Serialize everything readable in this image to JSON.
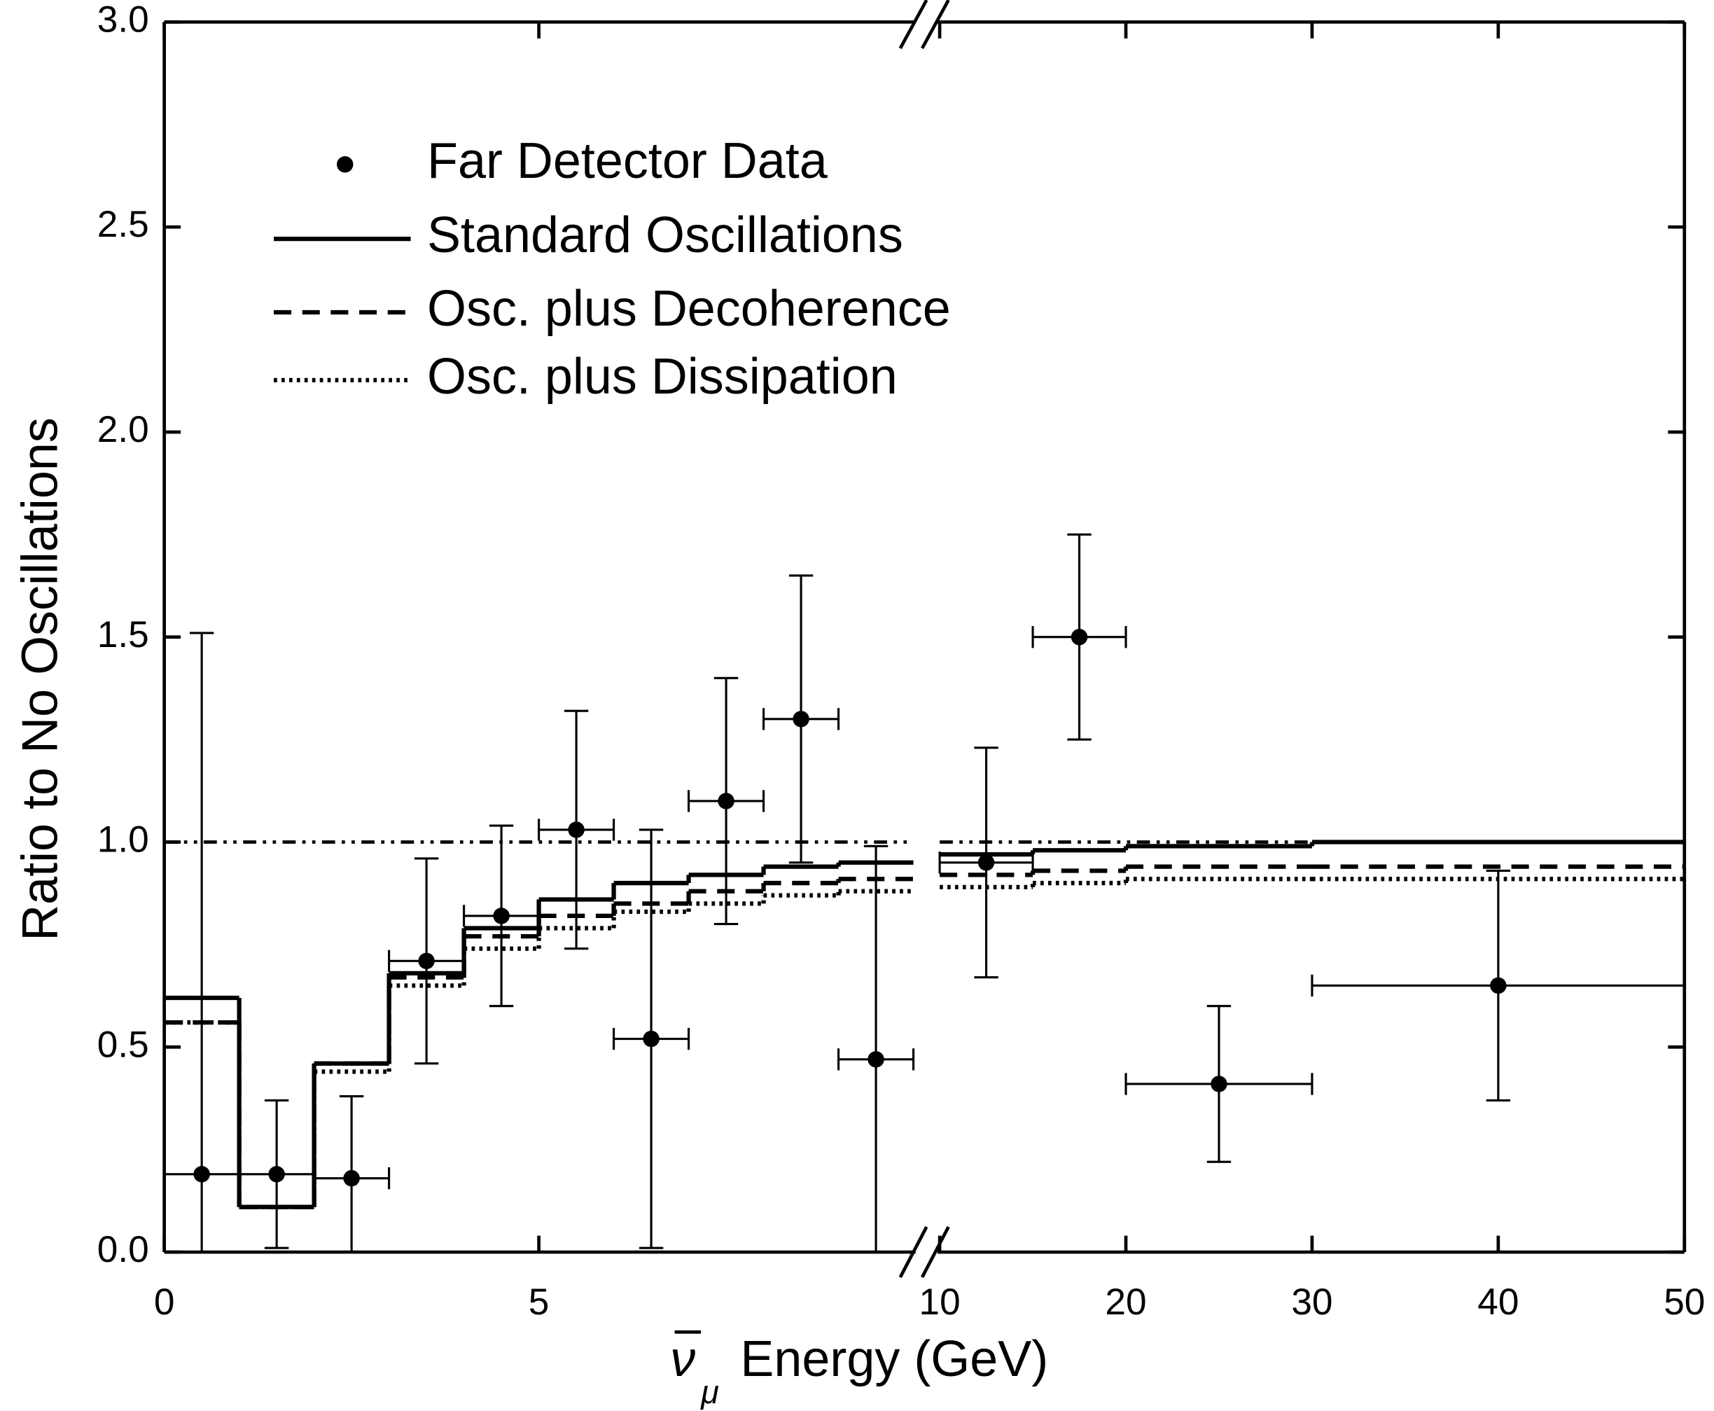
{
  "chart_data": {
    "type": "step",
    "ylabel": "Ratio to No Oscillations",
    "xlabel_symbol": "ν",
    "xlabel_subscript": "μ",
    "xlabel": "Energy (GeV)",
    "x_segments": [
      [
        0,
        10
      ],
      [
        10,
        50
      ]
    ],
    "xticks": [
      0,
      5,
      10,
      20,
      30,
      40,
      50
    ],
    "ylim": [
      0,
      3
    ],
    "yticks": [
      {
        "value": 0,
        "label": "0.0"
      },
      0.5,
      {
        "value": 1,
        "label": "1.0"
      },
      1.5,
      {
        "value": 2,
        "label": "2.0"
      },
      2.5,
      {
        "value": 3,
        "label": "3.0"
      }
    ],
    "reference_line": 1,
    "legend": "upper left",
    "bins": [
      0,
      1,
      2,
      3,
      4,
      5,
      6,
      7,
      8,
      9,
      10,
      15,
      20,
      30,
      50
    ],
    "steps": [
      {
        "name": "Standard Oscillations",
        "color": "#000000",
        "dash": "solid",
        "values": [
          0.62,
          0.11,
          0.46,
          0.68,
          0.79,
          0.86,
          0.9,
          0.92,
          0.94,
          0.95,
          0.97,
          0.98,
          0.99,
          1.0
        ]
      },
      {
        "name": "Osc. plus Decoherence",
        "color": "#000000",
        "dash": "dashed",
        "values": [
          0.56,
          0.11,
          0.46,
          0.67,
          0.77,
          0.82,
          0.85,
          0.88,
          0.9,
          0.91,
          0.92,
          0.93,
          0.94,
          0.94
        ]
      },
      {
        "name": "Osc. plus Dissipation",
        "color": "#000000",
        "dash": "dotted",
        "values": [
          0.56,
          0.11,
          0.44,
          0.65,
          0.74,
          0.79,
          0.83,
          0.85,
          0.87,
          0.88,
          0.89,
          0.9,
          0.91,
          0.91
        ]
      }
    ],
    "points": {
      "name": "Far Detector Data",
      "color": "#000000",
      "x": [
        0.5,
        1.5,
        2.5,
        3.5,
        4.5,
        5.5,
        6.5,
        7.5,
        8.5,
        9.5,
        12.5,
        17.5,
        25,
        40
      ],
      "values": [
        0.19,
        0.19,
        0.18,
        0.71,
        0.82,
        1.03,
        0.52,
        1.1,
        1.3,
        0.47,
        0.95,
        1.5,
        0.41,
        0.65
      ],
      "xerr": [
        0.5,
        0.5,
        0.5,
        0.5,
        0.5,
        0.5,
        0.5,
        0.5,
        0.5,
        0.5,
        2.5,
        2.5,
        5,
        10
      ],
      "yerr_low": [
        0.19,
        0.18,
        0.18,
        0.25,
        0.22,
        0.29,
        0.51,
        0.3,
        0.35,
        0.47,
        0.28,
        0.25,
        0.19,
        0.28
      ],
      "yerr_high": [
        1.32,
        0.18,
        0.2,
        0.25,
        0.22,
        0.29,
        0.51,
        0.3,
        0.35,
        0.52,
        0.28,
        0.25,
        0.19,
        0.28
      ]
    }
  }
}
